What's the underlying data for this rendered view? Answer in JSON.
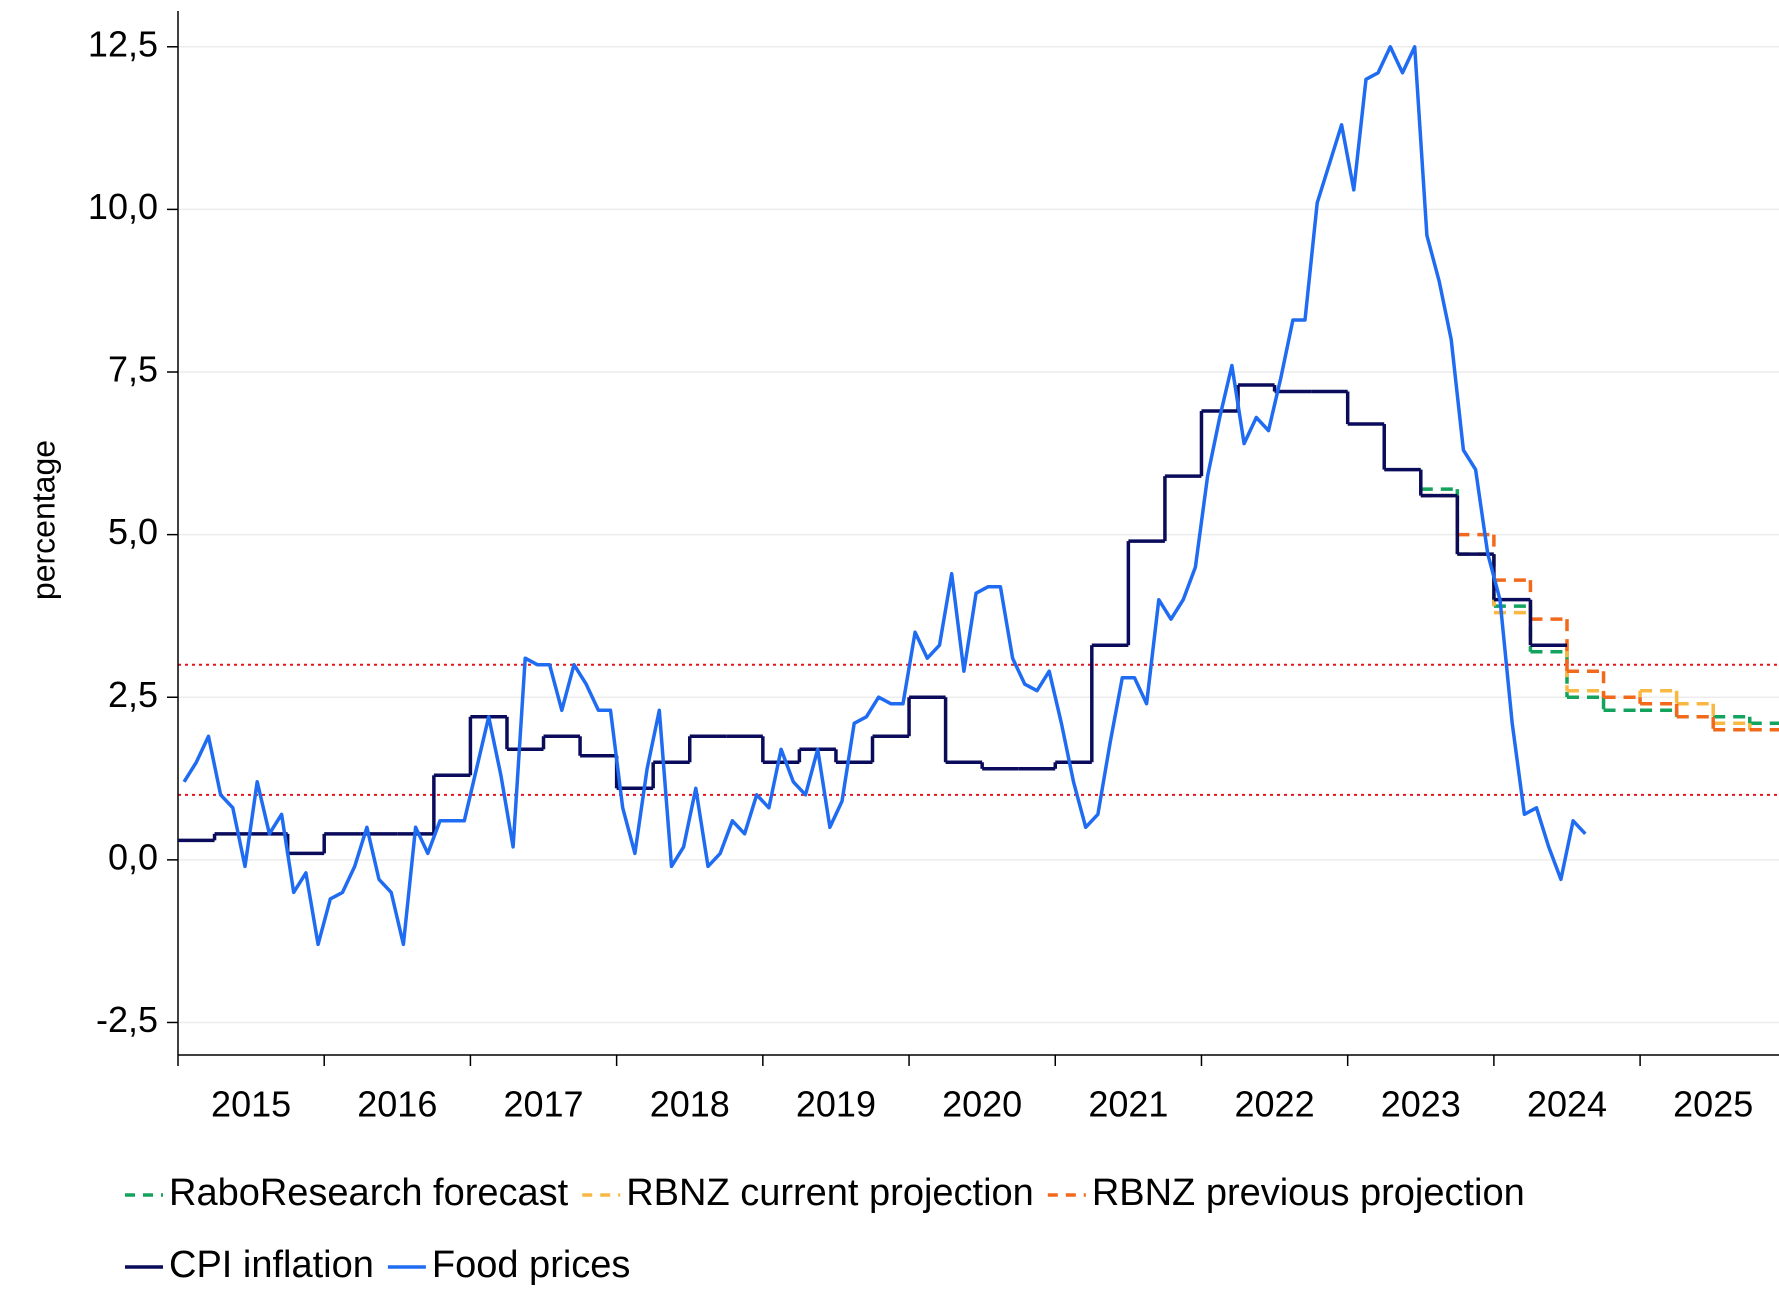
{
  "chart_data": {
    "type": "line",
    "y_label": "percentage",
    "xlim": [
      2015,
      2025.95
    ],
    "xticks": [
      2015,
      2016,
      2017,
      2018,
      2019,
      2020,
      2021,
      2022,
      2023,
      2024,
      2025
    ],
    "ylim": [
      -3,
      13.05
    ],
    "yticks": [
      {
        "value": -2.5,
        "label": "-2,5"
      },
      {
        "value": 0,
        "label": "0,0"
      },
      {
        "value": 2.5,
        "label": "2,5"
      },
      {
        "value": 5,
        "label": "5,0"
      },
      {
        "value": 7.5,
        "label": "7,5"
      },
      {
        "value": 10,
        "label": "10,0"
      },
      {
        "value": 12.5,
        "label": "12,5"
      }
    ],
    "grid": true,
    "reference_lines": [
      {
        "value": 1,
        "color": "#e8141c"
      },
      {
        "value": 3,
        "color": "#e8141c"
      }
    ],
    "series": [
      {
        "name": "RaboResearch forecast",
        "color": "#13a35c",
        "dashed": true,
        "step": true,
        "x": [
          "2023-07",
          "2023-10",
          "2024-01",
          "2024-04",
          "2024-07",
          "2024-10",
          "2025-01",
          "2025-04",
          "2025-07",
          "2025-10"
        ],
        "values": [
          5.7,
          4.7,
          3.9,
          3.2,
          2.5,
          2.3,
          2.3,
          2.2,
          2.2,
          2.1
        ]
      },
      {
        "name": "RBNZ current projection",
        "color": "#f9b843",
        "dashed": true,
        "step": true,
        "x": [
          "2023-07",
          "2023-10",
          "2024-01",
          "2024-04",
          "2024-07",
          "2024-10",
          "2025-01",
          "2025-04",
          "2025-07",
          "2025-10"
        ],
        "values": [
          5.6,
          4.7,
          3.8,
          3.3,
          2.6,
          2.5,
          2.6,
          2.4,
          2.1,
          2.0
        ]
      },
      {
        "name": "RBNZ previous projection",
        "color": "#f2691b",
        "dashed": true,
        "step": true,
        "x": [
          "2023-07",
          "2023-10",
          "2024-01",
          "2024-04",
          "2024-07",
          "2024-10",
          "2025-01",
          "2025-04",
          "2025-07",
          "2025-10"
        ],
        "values": [
          5.6,
          5.0,
          4.3,
          3.7,
          2.9,
          2.5,
          2.4,
          2.2,
          2.0,
          2.0
        ]
      },
      {
        "name": "CPI inflation",
        "color": "#0b0b5c",
        "dashed": false,
        "step": true,
        "x": [
          "2015-01",
          "2015-04",
          "2015-07",
          "2015-10",
          "2016-01",
          "2016-04",
          "2016-07",
          "2016-10",
          "2017-01",
          "2017-04",
          "2017-07",
          "2017-10",
          "2018-01",
          "2018-04",
          "2018-07",
          "2018-10",
          "2019-01",
          "2019-04",
          "2019-07",
          "2019-10",
          "2020-01",
          "2020-04",
          "2020-07",
          "2020-10",
          "2021-01",
          "2021-04",
          "2021-07",
          "2021-10",
          "2022-01",
          "2022-04",
          "2022-07",
          "2022-10",
          "2023-01",
          "2023-04",
          "2023-07",
          "2023-10",
          "2024-01",
          "2024-04"
        ],
        "values": [
          0.3,
          0.4,
          0.4,
          0.1,
          0.4,
          0.4,
          0.4,
          1.3,
          2.2,
          1.7,
          1.9,
          1.6,
          1.1,
          1.5,
          1.9,
          1.9,
          1.5,
          1.7,
          1.5,
          1.9,
          2.5,
          1.5,
          1.4,
          1.4,
          1.5,
          3.3,
          4.9,
          5.9,
          6.9,
          7.3,
          7.2,
          7.2,
          6.7,
          6.0,
          5.6,
          4.7,
          4.0,
          3.3
        ]
      },
      {
        "name": "Food prices",
        "color": "#1f6cf2",
        "dashed": false,
        "step": false,
        "x": [
          "2015-01",
          "2015-02",
          "2015-03",
          "2015-04",
          "2015-05",
          "2015-06",
          "2015-07",
          "2015-08",
          "2015-09",
          "2015-10",
          "2015-11",
          "2015-12",
          "2016-01",
          "2016-02",
          "2016-03",
          "2016-04",
          "2016-05",
          "2016-06",
          "2016-07",
          "2016-08",
          "2016-09",
          "2016-10",
          "2016-11",
          "2016-12",
          "2017-01",
          "2017-02",
          "2017-03",
          "2017-04",
          "2017-05",
          "2017-06",
          "2017-07",
          "2017-08",
          "2017-09",
          "2017-10",
          "2017-11",
          "2017-12",
          "2018-01",
          "2018-02",
          "2018-03",
          "2018-04",
          "2018-05",
          "2018-06",
          "2018-07",
          "2018-08",
          "2018-09",
          "2018-10",
          "2018-11",
          "2018-12",
          "2019-01",
          "2019-02",
          "2019-03",
          "2019-04",
          "2019-05",
          "2019-06",
          "2019-07",
          "2019-08",
          "2019-09",
          "2019-10",
          "2019-11",
          "2019-12",
          "2020-01",
          "2020-02",
          "2020-03",
          "2020-04",
          "2020-05",
          "2020-06",
          "2020-07",
          "2020-08",
          "2020-09",
          "2020-10",
          "2020-11",
          "2020-12",
          "2021-01",
          "2021-02",
          "2021-03",
          "2021-04",
          "2021-05",
          "2021-06",
          "2021-07",
          "2021-08",
          "2021-09",
          "2021-10",
          "2021-11",
          "2021-12",
          "2022-01",
          "2022-02",
          "2022-03",
          "2022-04",
          "2022-05",
          "2022-06",
          "2022-07",
          "2022-08",
          "2022-09",
          "2022-10",
          "2022-11",
          "2022-12",
          "2023-01",
          "2023-02",
          "2023-03",
          "2023-04",
          "2023-05",
          "2023-06",
          "2023-07",
          "2023-08",
          "2023-09",
          "2023-10",
          "2023-11",
          "2023-12",
          "2024-01",
          "2024-02",
          "2024-03",
          "2024-04",
          "2024-05",
          "2024-06",
          "2024-07",
          "2024-08"
        ],
        "values": [
          1.2,
          1.5,
          1.9,
          1.0,
          0.8,
          -0.1,
          1.2,
          0.4,
          0.7,
          -0.5,
          -0.2,
          -1.3,
          -0.6,
          -0.5,
          -0.1,
          0.5,
          -0.3,
          -0.5,
          -1.3,
          0.5,
          0.1,
          0.6,
          0.6,
          0.6,
          1.4,
          2.2,
          1.3,
          0.2,
          3.1,
          3.0,
          3.0,
          2.3,
          3.0,
          2.7,
          2.3,
          2.3,
          0.8,
          0.1,
          1.4,
          2.3,
          -0.1,
          0.2,
          1.1,
          -0.1,
          0.1,
          0.6,
          0.4,
          1.0,
          0.8,
          1.7,
          1.2,
          1.0,
          1.7,
          0.5,
          0.9,
          2.1,
          2.2,
          2.5,
          2.4,
          2.4,
          3.5,
          3.1,
          3.3,
          4.4,
          2.9,
          4.1,
          4.2,
          4.2,
          3.1,
          2.7,
          2.6,
          2.9,
          2.1,
          1.2,
          0.5,
          0.7,
          1.8,
          2.8,
          2.8,
          2.4,
          4.0,
          3.7,
          4.0,
          4.5,
          5.9,
          6.8,
          7.6,
          6.4,
          6.8,
          6.6,
          7.4,
          8.3,
          8.3,
          10.1,
          10.7,
          11.3,
          10.3,
          12.0,
          12.1,
          12.5,
          12.1,
          12.5,
          9.6,
          8.9,
          8.0,
          6.3,
          6.0,
          4.7,
          4.0,
          2.1,
          0.7,
          0.8,
          0.2,
          -0.3,
          0.6,
          0.4
        ]
      }
    ]
  }
}
